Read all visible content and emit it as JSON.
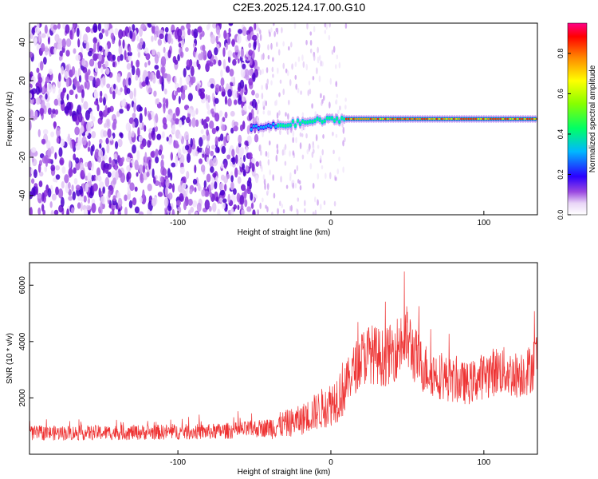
{
  "figure": {
    "title": "C2E3.2025.124.17.00.G10"
  },
  "chart_data": [
    {
      "type": "heatmap",
      "xlabel": "Height of straight line (km)",
      "ylabel": "Frequency (Hz)",
      "xlim": [
        -197,
        135
      ],
      "ylim": [
        -50,
        50
      ],
      "xticks": [
        -100,
        0,
        100
      ],
      "yticks": [
        -40,
        -20,
        0,
        20,
        40
      ],
      "grid": false,
      "noise_region_x": [
        -197,
        -48
      ],
      "transition_region_x": [
        -48,
        10
      ],
      "signal_ridge": {
        "x": [
          -52,
          -40,
          -30,
          -20,
          -10,
          0,
          10,
          30,
          60,
          100,
          135
        ],
        "y": [
          -5,
          -4,
          -3,
          -2,
          -1,
          -0.5,
          0,
          0,
          0,
          0,
          0
        ]
      },
      "colorbar": {
        "label": "Normalized spectral amplitude",
        "range": [
          0,
          0.95
        ],
        "ticks": [
          0,
          0.2,
          0.4,
          0.6,
          0.8
        ],
        "tick_labels": [
          "0.0",
          "0.2",
          "0.4",
          "0.6",
          "0.8"
        ]
      }
    },
    {
      "type": "line",
      "xlabel": "Height of straight line (km)",
      "ylabel": "SNR (10 * v/v)",
      "xlim": [
        -197,
        135
      ],
      "ylim": [
        0,
        6800
      ],
      "xticks": [
        -100,
        0,
        100
      ],
      "yticks": [
        2000,
        4000,
        6000
      ],
      "grid": false,
      "series": [
        {
          "color": "#ee3333",
          "x": [
            -197,
            -160,
            -120,
            -80,
            -60,
            -40,
            -20,
            -10,
            0,
            5,
            10,
            15,
            20,
            25,
            30,
            35,
            40,
            45,
            50,
            55,
            60,
            70,
            80,
            90,
            100,
            110,
            120,
            130,
            135
          ],
          "y": [
            750,
            760,
            780,
            800,
            850,
            950,
            1200,
            1500,
            1800,
            2100,
            2500,
            3000,
            3400,
            3600,
            3500,
            3400,
            3600,
            3900,
            4100,
            3500,
            3100,
            2800,
            2600,
            2500,
            2800,
            3000,
            2800,
            3000,
            3500
          ]
        }
      ]
    }
  ]
}
